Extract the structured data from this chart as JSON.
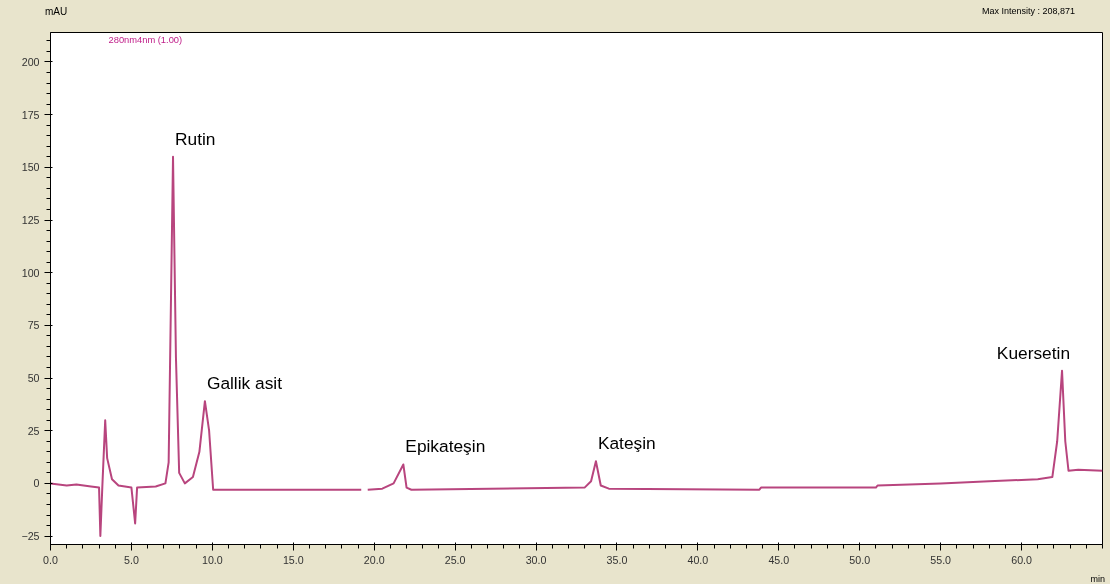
{
  "chart_data": {
    "type": "line",
    "xlabel": "min",
    "ylabel": "mAU",
    "x": [
      0,
      1,
      1.6,
      2.5,
      3.0,
      3.08,
      3.2,
      3.38,
      3.5,
      3.8,
      4.2,
      5.0,
      5.23,
      5.35,
      6.5,
      7.1,
      7.3,
      7.57,
      7.75,
      7.95,
      8.3,
      8.8,
      9.2,
      9.54,
      9.8,
      10.05,
      19.2,
      19.4,
      19.6,
      20.5,
      21.2,
      21.8,
      22.0,
      22.3,
      33.0,
      33.4,
      33.7,
      34.0,
      34.5,
      43.8,
      43.9,
      51.0,
      51.1,
      55,
      58,
      61,
      61.9,
      62.2,
      62.5,
      62.7,
      62.9,
      63.5,
      65
    ],
    "series": [
      {
        "color": "#b8457e",
        "values": [
          0,
          -1,
          -0.5,
          -1.5,
          -2,
          -25,
          -2,
          30,
          12,
          2,
          -1,
          -2,
          -19,
          -2,
          -1.5,
          0,
          10,
          155,
          60,
          5,
          0,
          3,
          15,
          39,
          25,
          -3,
          -3,
          null,
          -3,
          -2.5,
          0,
          9,
          -2,
          -3,
          -2,
          1,
          10.5,
          -1,
          -2.5,
          -3,
          -2,
          -2,
          -1,
          0,
          1,
          2,
          3,
          20,
          53.5,
          20,
          6,
          6.5,
          6
        ]
      }
    ],
    "xlim": [
      0,
      65
    ],
    "ylim": [
      -29,
      214
    ],
    "xticks": [
      {
        "value": 0,
        "label": "0.0"
      },
      {
        "value": 5,
        "label": "5.0"
      },
      {
        "value": 10,
        "label": "10.0"
      },
      {
        "value": 15,
        "label": "15.0"
      },
      {
        "value": 20,
        "label": "20.0"
      },
      {
        "value": 25,
        "label": "25.0"
      },
      {
        "value": 30,
        "label": "30.0"
      },
      {
        "value": 35,
        "label": "35.0"
      },
      {
        "value": 40,
        "label": "40.0"
      },
      {
        "value": 45,
        "label": "45.0"
      },
      {
        "value": 50,
        "label": "50.0"
      },
      {
        "value": 55,
        "label": "55.0"
      },
      {
        "value": 60,
        "label": "60.0"
      }
    ],
    "yticks": [
      -25,
      0,
      25,
      50,
      75,
      100,
      125,
      150,
      175,
      200
    ],
    "grid": false,
    "marker": "none",
    "line_style": "solid",
    "annotations": [
      "280nm4nm (1.00)",
      "Max Intensity : 208,871",
      {
        "text": "Rutin",
        "x": 7.57,
        "y": 155
      },
      {
        "text": "Gallik asit",
        "x": 9.54,
        "y": 39
      },
      {
        "text": "Epikateşin",
        "x": 21.8,
        "y": 9
      },
      {
        "text": "Kateşin",
        "x": 33.7,
        "y": 10.5
      },
      {
        "text": "Kuersetin",
        "x": 62.5,
        "y": 53.5
      }
    ]
  }
}
